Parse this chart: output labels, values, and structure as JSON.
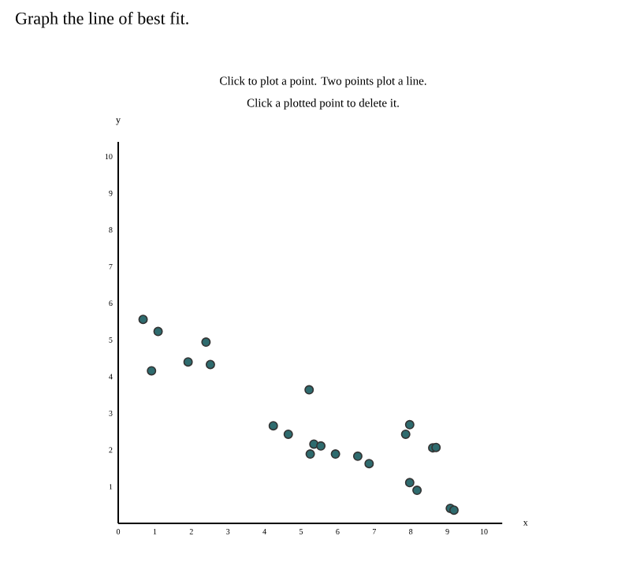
{
  "chart_data": {
    "type": "scatter",
    "title": "Graph the line of best fit.",
    "annotations": [
      "Click to plot a point. Two points plot a line.",
      "Click a plotted point to delete it."
    ],
    "xlabel": "x",
    "ylabel": "y",
    "xlim": [
      0,
      10.5
    ],
    "ylim": [
      0,
      10.4
    ],
    "xticks": [
      0,
      1,
      2,
      3,
      4,
      5,
      6,
      7,
      8,
      9,
      10
    ],
    "yticks": [
      1,
      2,
      3,
      4,
      5,
      6,
      7,
      8,
      9,
      10
    ],
    "marker": "circle",
    "series": [
      {
        "color": "#2e6b6e",
        "x": [
          0.68,
          1.09,
          0.91,
          1.91,
          2.4,
          2.52,
          5.22,
          4.24,
          4.65,
          5.35,
          5.54,
          5.25,
          5.94,
          6.55,
          6.86,
          7.97,
          7.86,
          8.6,
          8.69,
          7.97,
          8.17,
          9.08,
          9.18
        ],
        "values": [
          5.56,
          5.23,
          4.16,
          4.4,
          4.94,
          4.33,
          3.64,
          2.66,
          2.43,
          2.16,
          2.11,
          1.89,
          1.89,
          1.83,
          1.63,
          2.69,
          2.43,
          2.06,
          2.07,
          1.11,
          0.9,
          0.41,
          0.36
        ]
      }
    ]
  }
}
